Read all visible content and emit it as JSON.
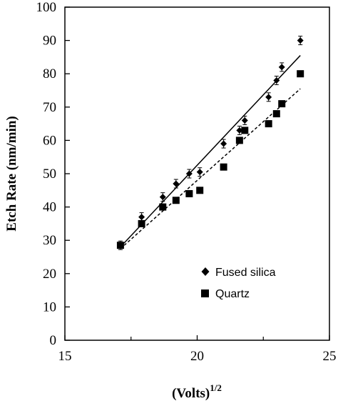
{
  "chart_data": {
    "type": "scatter",
    "xlabel": "(Volts)",
    "xlabel_superscript": "1/2",
    "ylabel": "Etch Rate (nm/min)",
    "xlim": [
      15,
      25
    ],
    "ylim": [
      0,
      100
    ],
    "x_ticks": [
      "15",
      "20",
      "25"
    ],
    "y_ticks": [
      "0",
      "10",
      "20",
      "30",
      "40",
      "50",
      "60",
      "70",
      "80",
      "90",
      "100"
    ],
    "grid": false,
    "legend_position": "lower-right",
    "series": [
      {
        "name": "Fused silica",
        "marker": "diamond",
        "points": [
          {
            "x": 17.1,
            "y": 28.5
          },
          {
            "x": 17.9,
            "y": 37
          },
          {
            "x": 18.7,
            "y": 43
          },
          {
            "x": 19.2,
            "y": 47
          },
          {
            "x": 19.7,
            "y": 50
          },
          {
            "x": 20.1,
            "y": 50.5
          },
          {
            "x": 21.0,
            "y": 59
          },
          {
            "x": 21.6,
            "y": 63
          },
          {
            "x": 21.8,
            "y": 66
          },
          {
            "x": 22.7,
            "y": 73
          },
          {
            "x": 23.0,
            "y": 78
          },
          {
            "x": 23.2,
            "y": 82
          },
          {
            "x": 23.9,
            "y": 90
          }
        ],
        "trendline": {
          "style": "solid",
          "from": {
            "x": 17.1,
            "y": 28
          },
          "to": {
            "x": 23.9,
            "y": 85.5
          }
        }
      },
      {
        "name": "Quartz",
        "marker": "square",
        "points": [
          {
            "x": 17.1,
            "y": 28.5
          },
          {
            "x": 17.9,
            "y": 35
          },
          {
            "x": 18.7,
            "y": 40
          },
          {
            "x": 19.2,
            "y": 42
          },
          {
            "x": 19.7,
            "y": 44
          },
          {
            "x": 20.1,
            "y": 45
          },
          {
            "x": 21.0,
            "y": 52
          },
          {
            "x": 21.6,
            "y": 60
          },
          {
            "x": 21.8,
            "y": 63
          },
          {
            "x": 22.7,
            "y": 65
          },
          {
            "x": 23.0,
            "y": 68
          },
          {
            "x": 23.2,
            "y": 71
          },
          {
            "x": 23.9,
            "y": 80
          }
        ],
        "trendline": {
          "style": "dashed",
          "from": {
            "x": 17.1,
            "y": 27.5
          },
          "to": {
            "x": 23.9,
            "y": 75.5
          }
        }
      }
    ]
  }
}
